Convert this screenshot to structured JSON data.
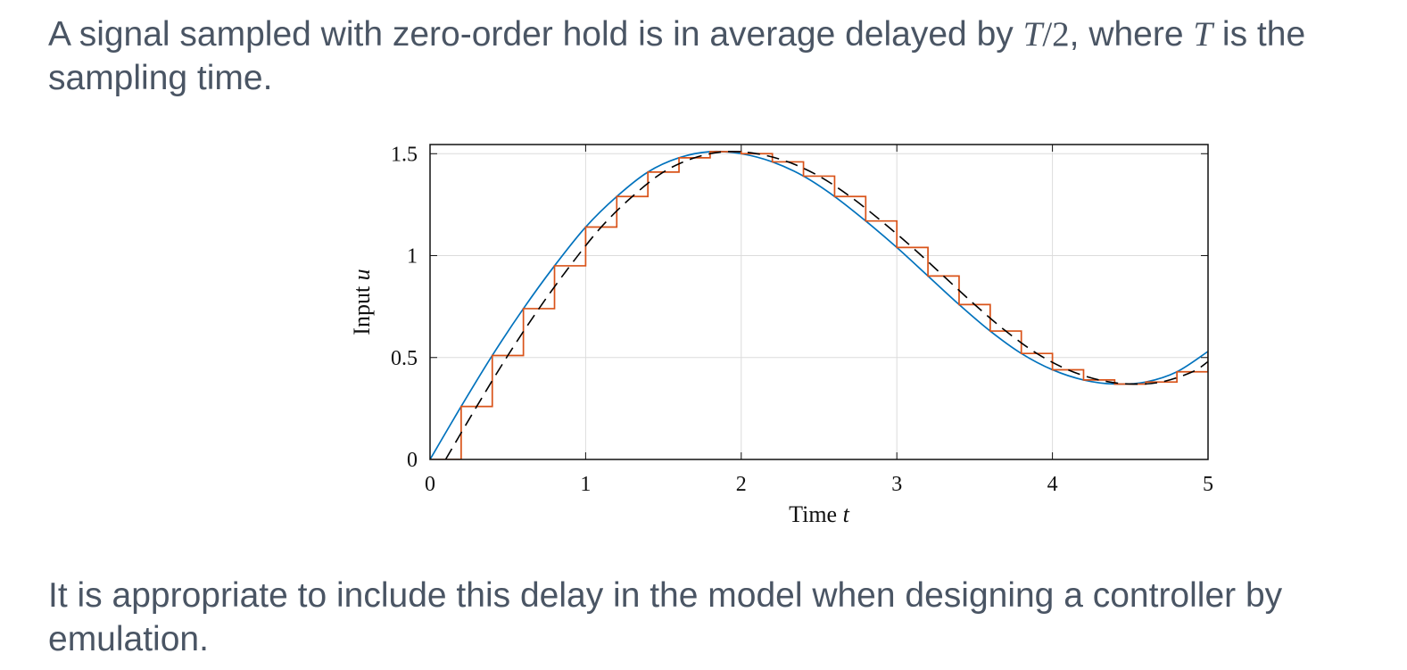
{
  "slide": {
    "intro": {
      "before": "A signal sampled with zero-order hold is in average delayed by ",
      "math1_var": "T",
      "math1_rest": "/2",
      "middle": ", where ",
      "math2_var": "T",
      "after": " is the sampling time."
    },
    "conclusion": "It is appropriate to include this delay in the model when designing a controller by emulation."
  },
  "chart_data": {
    "type": "line",
    "xlabel": "Time",
    "xlabel_var": "t",
    "ylabel": "Input",
    "ylabel_var": "u",
    "xlim": [
      0,
      5
    ],
    "ylim": [
      0,
      1.5
    ],
    "xticks": [
      0,
      1,
      2,
      3,
      4,
      5
    ],
    "yticks": [
      0,
      0.5,
      1,
      1.5
    ],
    "ytick_labels": [
      "0",
      "0.5",
      "1",
      "1.5"
    ],
    "grid": true,
    "legend": "none",
    "sampling_time": 0.2,
    "series": [
      {
        "style": "solid",
        "color": "#0072bd",
        "x": [
          0,
          0.2,
          0.4,
          0.6,
          0.8,
          1.0,
          1.2,
          1.4,
          1.6,
          1.8,
          2.0,
          2.2,
          2.4,
          2.6,
          2.8,
          3.0,
          3.2,
          3.4,
          3.6,
          3.8,
          4.0,
          4.2,
          4.4,
          4.6,
          4.8,
          5.0
        ],
        "y": [
          0,
          0.26,
          0.51,
          0.74,
          0.95,
          1.14,
          1.29,
          1.41,
          1.48,
          1.51,
          1.5,
          1.46,
          1.39,
          1.29,
          1.17,
          1.04,
          0.9,
          0.76,
          0.63,
          0.52,
          0.44,
          0.39,
          0.37,
          0.38,
          0.43,
          0.53
        ]
      },
      {
        "style": "step",
        "color": "#d95319",
        "x": [
          0,
          0.2,
          0.4,
          0.6,
          0.8,
          1.0,
          1.2,
          1.4,
          1.6,
          1.8,
          2.0,
          2.2,
          2.4,
          2.6,
          2.8,
          3.0,
          3.2,
          3.4,
          3.6,
          3.8,
          4.0,
          4.2,
          4.4,
          4.6,
          4.8,
          5.0
        ],
        "y": [
          0,
          0.26,
          0.51,
          0.74,
          0.95,
          1.14,
          1.29,
          1.41,
          1.48,
          1.51,
          1.5,
          1.46,
          1.39,
          1.29,
          1.17,
          1.04,
          0.9,
          0.76,
          0.63,
          0.52,
          0.44,
          0.39,
          0.37,
          0.38,
          0.43,
          0.53
        ]
      },
      {
        "style": "dashed",
        "color": "#000000",
        "x": [
          0.1,
          0.3,
          0.5,
          0.7,
          0.9,
          1.1,
          1.3,
          1.5,
          1.7,
          1.9,
          2.1,
          2.3,
          2.5,
          2.7,
          2.9,
          3.1,
          3.3,
          3.5,
          3.7,
          3.9,
          4.1,
          4.3,
          4.5,
          4.7,
          4.9,
          5.0
        ],
        "y": [
          0,
          0.26,
          0.51,
          0.74,
          0.95,
          1.14,
          1.29,
          1.41,
          1.48,
          1.51,
          1.5,
          1.46,
          1.39,
          1.29,
          1.17,
          1.04,
          0.9,
          0.76,
          0.63,
          0.52,
          0.44,
          0.39,
          0.37,
          0.38,
          0.43,
          0.48
        ]
      }
    ]
  }
}
